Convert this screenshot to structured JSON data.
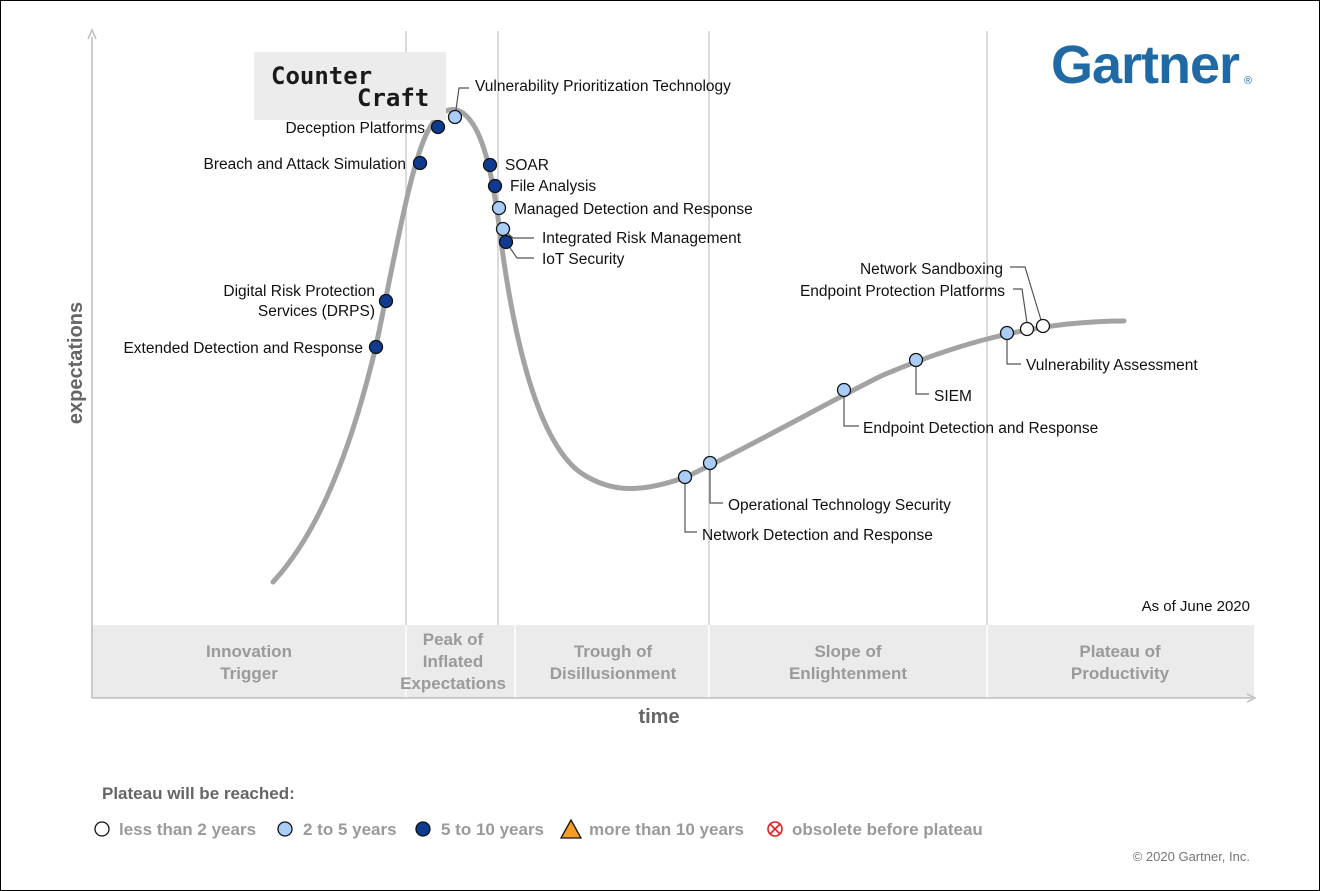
{
  "chart_data": {
    "type": "scatter",
    "ylabel": "expectations",
    "xlabel": "time",
    "as_of": "As of June 2020",
    "phases": [
      {
        "lines": [
          "Innovation",
          "Trigger"
        ]
      },
      {
        "lines": [
          "Peak of",
          "Inflated",
          "Expectations"
        ]
      },
      {
        "lines": [
          "Trough of",
          "Disillusionment"
        ]
      },
      {
        "lines": [
          "Slope of",
          "Enlightenment"
        ]
      },
      {
        "lines": [
          "Plateau of",
          "Productivity"
        ]
      }
    ],
    "points": [
      {
        "name": "Extended Detection and Response",
        "category": "5-10"
      },
      {
        "name": "Digital Risk Protection Services (DRPS)",
        "category": "5-10"
      },
      {
        "name": "Breach and Attack Simulation",
        "category": "5-10"
      },
      {
        "name": "Deception Platforms",
        "category": "5-10"
      },
      {
        "name": "Vulnerability Prioritization Technology",
        "category": "2-5"
      },
      {
        "name": "SOAR",
        "category": "5-10"
      },
      {
        "name": "File Analysis",
        "category": "5-10"
      },
      {
        "name": "Managed Detection and Response",
        "category": "2-5"
      },
      {
        "name": "Integrated Risk Management",
        "category": "2-5"
      },
      {
        "name": "IoT Security",
        "category": "5-10"
      },
      {
        "name": "Network Detection and Response",
        "category": "2-5"
      },
      {
        "name": "Operational Technology Security",
        "category": "2-5"
      },
      {
        "name": "Endpoint Detection and Response",
        "category": "2-5"
      },
      {
        "name": "SIEM",
        "category": "2-5"
      },
      {
        "name": "Vulnerability Assessment",
        "category": "2-5"
      },
      {
        "name": "Endpoint Protection Platforms",
        "category": "<2"
      },
      {
        "name": "Network Sandboxing",
        "category": "<2"
      }
    ],
    "legend": {
      "title": "Plateau will be reached:",
      "items": [
        {
          "key": "<2",
          "label": "less than 2 years",
          "color": "#ffffff",
          "shape": "circle"
        },
        {
          "key": "2-5",
          "label": "2 to 5 years",
          "color": "#a9cdf5",
          "shape": "circle"
        },
        {
          "key": "5-10",
          "label": "5 to 10 years",
          "color": "#0e3a8f",
          "shape": "circle"
        },
        {
          "key": ">10",
          "label": "more than 10 years",
          "color": "#f59d23",
          "shape": "triangle"
        },
        {
          "key": "obsolete",
          "label": "obsolete before plateau",
          "color": "#e02020",
          "shape": "crossed-circle"
        }
      ]
    }
  },
  "branding": {
    "vendor_logo": "Gartner",
    "vendor_color": "#1f6aa5",
    "partner_logo_lines": [
      "Counter",
      "Craft"
    ],
    "copyright": "© 2020 Gartner, Inc."
  }
}
